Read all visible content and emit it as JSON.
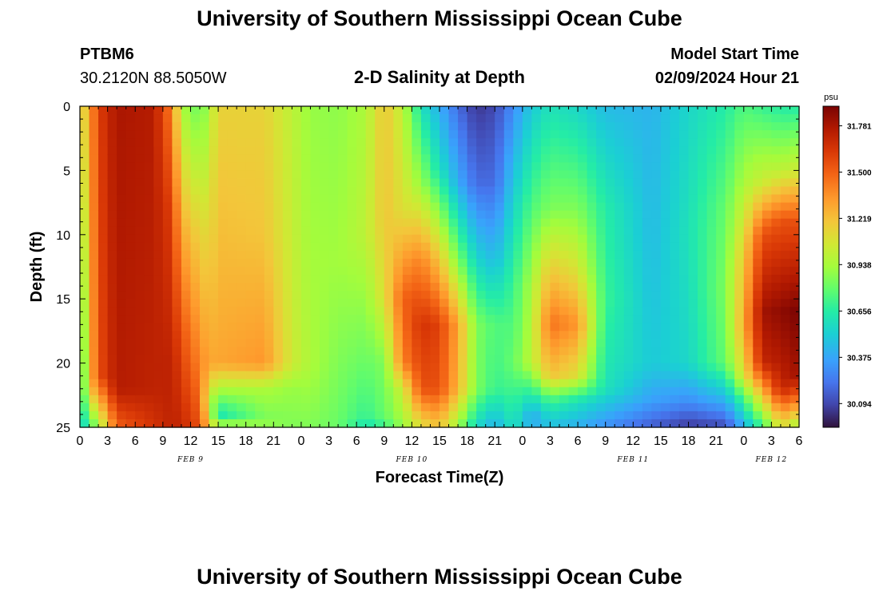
{
  "header": {
    "title": "University of Southern Mississippi Ocean Cube",
    "station": "PTBM6",
    "coords": "30.2120N  88.5050W",
    "plot_title": "2-D Salinity at Depth",
    "model_label": "Model Start Time",
    "model_time": "02/09/2024 Hour 21"
  },
  "footer": {
    "title": "University of Southern Mississippi Ocean Cube"
  },
  "chart_data": {
    "type": "heatmap",
    "title": "2-D Salinity at Depth",
    "xlabel": "Forecast Time(Z)",
    "ylabel": "Depth (ft)",
    "x_range_hours": [
      0,
      78
    ],
    "x_ticks": [
      "0",
      "3",
      "6",
      "9",
      "12",
      "15",
      "18",
      "21",
      "0",
      "3",
      "6",
      "9",
      "12",
      "15",
      "18",
      "21",
      "0",
      "3",
      "6",
      "9",
      "12",
      "15",
      "18",
      "21",
      "0",
      "3",
      "6"
    ],
    "date_labels": [
      {
        "hour": 12,
        "label": "FEB 9"
      },
      {
        "hour": 36,
        "label": "FEB 10"
      },
      {
        "hour": 60,
        "label": "FEB 11"
      },
      {
        "hour": 75,
        "label": "FEB 12"
      }
    ],
    "y_range": [
      0,
      25
    ],
    "y_ticks": [
      "0",
      "5",
      "10",
      "15",
      "20",
      "25"
    ],
    "colorbar": {
      "unit": "psu",
      "min": 29.95,
      "max": 31.9,
      "ticks": [
        "31.781",
        "31.500",
        "31.219",
        "30.938",
        "30.656",
        "30.375",
        "30.094"
      ]
    },
    "salinity_columns": [
      {
        "hour": 0,
        "profile": [
          [
            0,
            31.05
          ],
          [
            25,
            30.5
          ]
        ]
      },
      {
        "hour": 1,
        "profile": [
          [
            0,
            31.3
          ],
          [
            22,
            31.2
          ],
          [
            25,
            30.7
          ]
        ]
      },
      {
        "hour": 2,
        "profile": [
          [
            0,
            31.6
          ],
          [
            21,
            31.55
          ],
          [
            25,
            30.9
          ]
        ]
      },
      {
        "hour": 4,
        "profile": [
          [
            0,
            31.78
          ],
          [
            22,
            31.75
          ],
          [
            25,
            31.5
          ]
        ]
      },
      {
        "hour": 8,
        "profile": [
          [
            0,
            31.75
          ],
          [
            22,
            31.72
          ],
          [
            25,
            31.65
          ]
        ]
      },
      {
        "hour": 10,
        "profile": [
          [
            0,
            31.4
          ],
          [
            8,
            31.6
          ],
          [
            20,
            31.72
          ],
          [
            25,
            31.72
          ]
        ]
      },
      {
        "hour": 11,
        "profile": [
          [
            0,
            30.95
          ],
          [
            10,
            31.3
          ],
          [
            18,
            31.55
          ],
          [
            25,
            31.7
          ]
        ]
      },
      {
        "hour": 13,
        "profile": [
          [
            0,
            30.8
          ],
          [
            10,
            31.15
          ],
          [
            20,
            31.4
          ],
          [
            25,
            31.55
          ]
        ]
      },
      {
        "hour": 14,
        "profile": [
          [
            0,
            30.95
          ],
          [
            20,
            31.3
          ],
          [
            23,
            31.0
          ],
          [
            25,
            31.2
          ]
        ]
      },
      {
        "hour": 15,
        "profile": [
          [
            0,
            31.15
          ],
          [
            20,
            31.3
          ],
          [
            22,
            30.95
          ],
          [
            24,
            30.6
          ],
          [
            25,
            31.0
          ]
        ]
      },
      {
        "hour": 20,
        "profile": [
          [
            0,
            31.15
          ],
          [
            10,
            31.2
          ],
          [
            20,
            31.35
          ],
          [
            22,
            30.95
          ],
          [
            24,
            30.85
          ],
          [
            25,
            30.9
          ]
        ]
      },
      {
        "hour": 23,
        "profile": [
          [
            0,
            31.0
          ],
          [
            20,
            31.05
          ],
          [
            22,
            30.9
          ],
          [
            25,
            30.85
          ]
        ]
      },
      {
        "hour": 25,
        "profile": [
          [
            0,
            30.9
          ],
          [
            20,
            30.95
          ],
          [
            25,
            30.85
          ]
        ]
      },
      {
        "hour": 28,
        "profile": [
          [
            0,
            30.88
          ],
          [
            12,
            30.92
          ],
          [
            20,
            30.85
          ],
          [
            25,
            30.8
          ]
        ]
      },
      {
        "hour": 31,
        "profile": [
          [
            0,
            30.95
          ],
          [
            10,
            31.0
          ],
          [
            20,
            30.8
          ],
          [
            24,
            30.7
          ],
          [
            25,
            30.6
          ]
        ]
      },
      {
        "hour": 33,
        "profile": [
          [
            0,
            31.2
          ],
          [
            8,
            31.2
          ],
          [
            15,
            31.1
          ],
          [
            20,
            30.85
          ],
          [
            24,
            30.8
          ],
          [
            25,
            30.7
          ]
        ]
      },
      {
        "hour": 35,
        "profile": [
          [
            0,
            31.0
          ],
          [
            8,
            31.1
          ],
          [
            15,
            31.5
          ],
          [
            20,
            31.4
          ],
          [
            22,
            31.05
          ],
          [
            25,
            30.9
          ]
        ]
      },
      {
        "hour": 37,
        "profile": [
          [
            0,
            30.6
          ],
          [
            6,
            30.9
          ],
          [
            12,
            31.4
          ],
          [
            17,
            31.65
          ],
          [
            22,
            31.55
          ],
          [
            25,
            31.1
          ]
        ]
      },
      {
        "hour": 39,
        "profile": [
          [
            0,
            30.4
          ],
          [
            5,
            30.6
          ],
          [
            12,
            31.2
          ],
          [
            17,
            31.6
          ],
          [
            22,
            31.55
          ],
          [
            25,
            31.2
          ]
        ]
      },
      {
        "hour": 41,
        "profile": [
          [
            0,
            30.2
          ],
          [
            6,
            30.4
          ],
          [
            12,
            30.85
          ],
          [
            17,
            31.3
          ],
          [
            22,
            31.25
          ],
          [
            25,
            30.9
          ]
        ]
      },
      {
        "hour": 43,
        "profile": [
          [
            0,
            30.05
          ],
          [
            6,
            30.2
          ],
          [
            12,
            30.55
          ],
          [
            17,
            30.85
          ],
          [
            22,
            30.85
          ],
          [
            25,
            30.55
          ]
        ]
      },
      {
        "hour": 45,
        "profile": [
          [
            0,
            30.1
          ],
          [
            6,
            30.2
          ],
          [
            12,
            30.45
          ],
          [
            17,
            30.75
          ],
          [
            22,
            30.7
          ],
          [
            25,
            30.4
          ]
        ]
      },
      {
        "hour": 47,
        "profile": [
          [
            0,
            30.3
          ],
          [
            8,
            30.55
          ],
          [
            14,
            30.7
          ],
          [
            20,
            30.8
          ],
          [
            25,
            30.6
          ]
        ]
      },
      {
        "hour": 49,
        "profile": [
          [
            0,
            30.5
          ],
          [
            8,
            30.75
          ],
          [
            14,
            30.95
          ],
          [
            20,
            31.0
          ],
          [
            22,
            30.7
          ],
          [
            24,
            30.4
          ],
          [
            25,
            30.4
          ]
        ]
      },
      {
        "hour": 51,
        "profile": [
          [
            0,
            30.6
          ],
          [
            8,
            30.85
          ],
          [
            13,
            31.2
          ],
          [
            17,
            31.45
          ],
          [
            21,
            31.2
          ],
          [
            23,
            30.7
          ],
          [
            25,
            30.45
          ]
        ]
      },
      {
        "hour": 54,
        "profile": [
          [
            0,
            30.55
          ],
          [
            8,
            30.85
          ],
          [
            13,
            31.1
          ],
          [
            17,
            31.35
          ],
          [
            21,
            31.1
          ],
          [
            23,
            30.6
          ],
          [
            25,
            30.4
          ]
        ]
      },
      {
        "hour": 57,
        "profile": [
          [
            0,
            30.45
          ],
          [
            8,
            30.65
          ],
          [
            15,
            30.7
          ],
          [
            22,
            30.6
          ],
          [
            25,
            30.3
          ]
        ]
      },
      {
        "hour": 62,
        "profile": [
          [
            0,
            30.42
          ],
          [
            10,
            30.45
          ],
          [
            20,
            30.5
          ],
          [
            23,
            30.35
          ],
          [
            25,
            30.15
          ]
        ]
      },
      {
        "hour": 66,
        "profile": [
          [
            0,
            30.55
          ],
          [
            10,
            30.6
          ],
          [
            20,
            30.55
          ],
          [
            23,
            30.3
          ],
          [
            25,
            30.05
          ]
        ]
      },
      {
        "hour": 70,
        "profile": [
          [
            0,
            30.65
          ],
          [
            8,
            30.8
          ],
          [
            14,
            30.85
          ],
          [
            20,
            30.8
          ],
          [
            23,
            30.4
          ],
          [
            25,
            30.1
          ]
        ]
      },
      {
        "hour": 72,
        "profile": [
          [
            0,
            30.75
          ],
          [
            6,
            30.95
          ],
          [
            12,
            31.2
          ],
          [
            17,
            31.3
          ],
          [
            21,
            31.1
          ],
          [
            23,
            30.7
          ],
          [
            25,
            30.4
          ]
        ]
      },
      {
        "hour": 74,
        "profile": [
          [
            0,
            30.7
          ],
          [
            6,
            31.05
          ],
          [
            10,
            31.55
          ],
          [
            16,
            31.8
          ],
          [
            20,
            31.7
          ],
          [
            23,
            31.1
          ],
          [
            25,
            30.7
          ]
        ]
      },
      {
        "hour": 76,
        "profile": [
          [
            0,
            30.65
          ],
          [
            5,
            31.0
          ],
          [
            9,
            31.55
          ],
          [
            16,
            31.85
          ],
          [
            22,
            31.7
          ],
          [
            25,
            31.1
          ]
        ]
      },
      {
        "hour": 78,
        "profile": [
          [
            0,
            30.65
          ],
          [
            5,
            31.05
          ],
          [
            9,
            31.55
          ],
          [
            16,
            31.9
          ],
          [
            21,
            31.8
          ],
          [
            23,
            31.4
          ],
          [
            25,
            30.9
          ]
        ]
      }
    ]
  }
}
